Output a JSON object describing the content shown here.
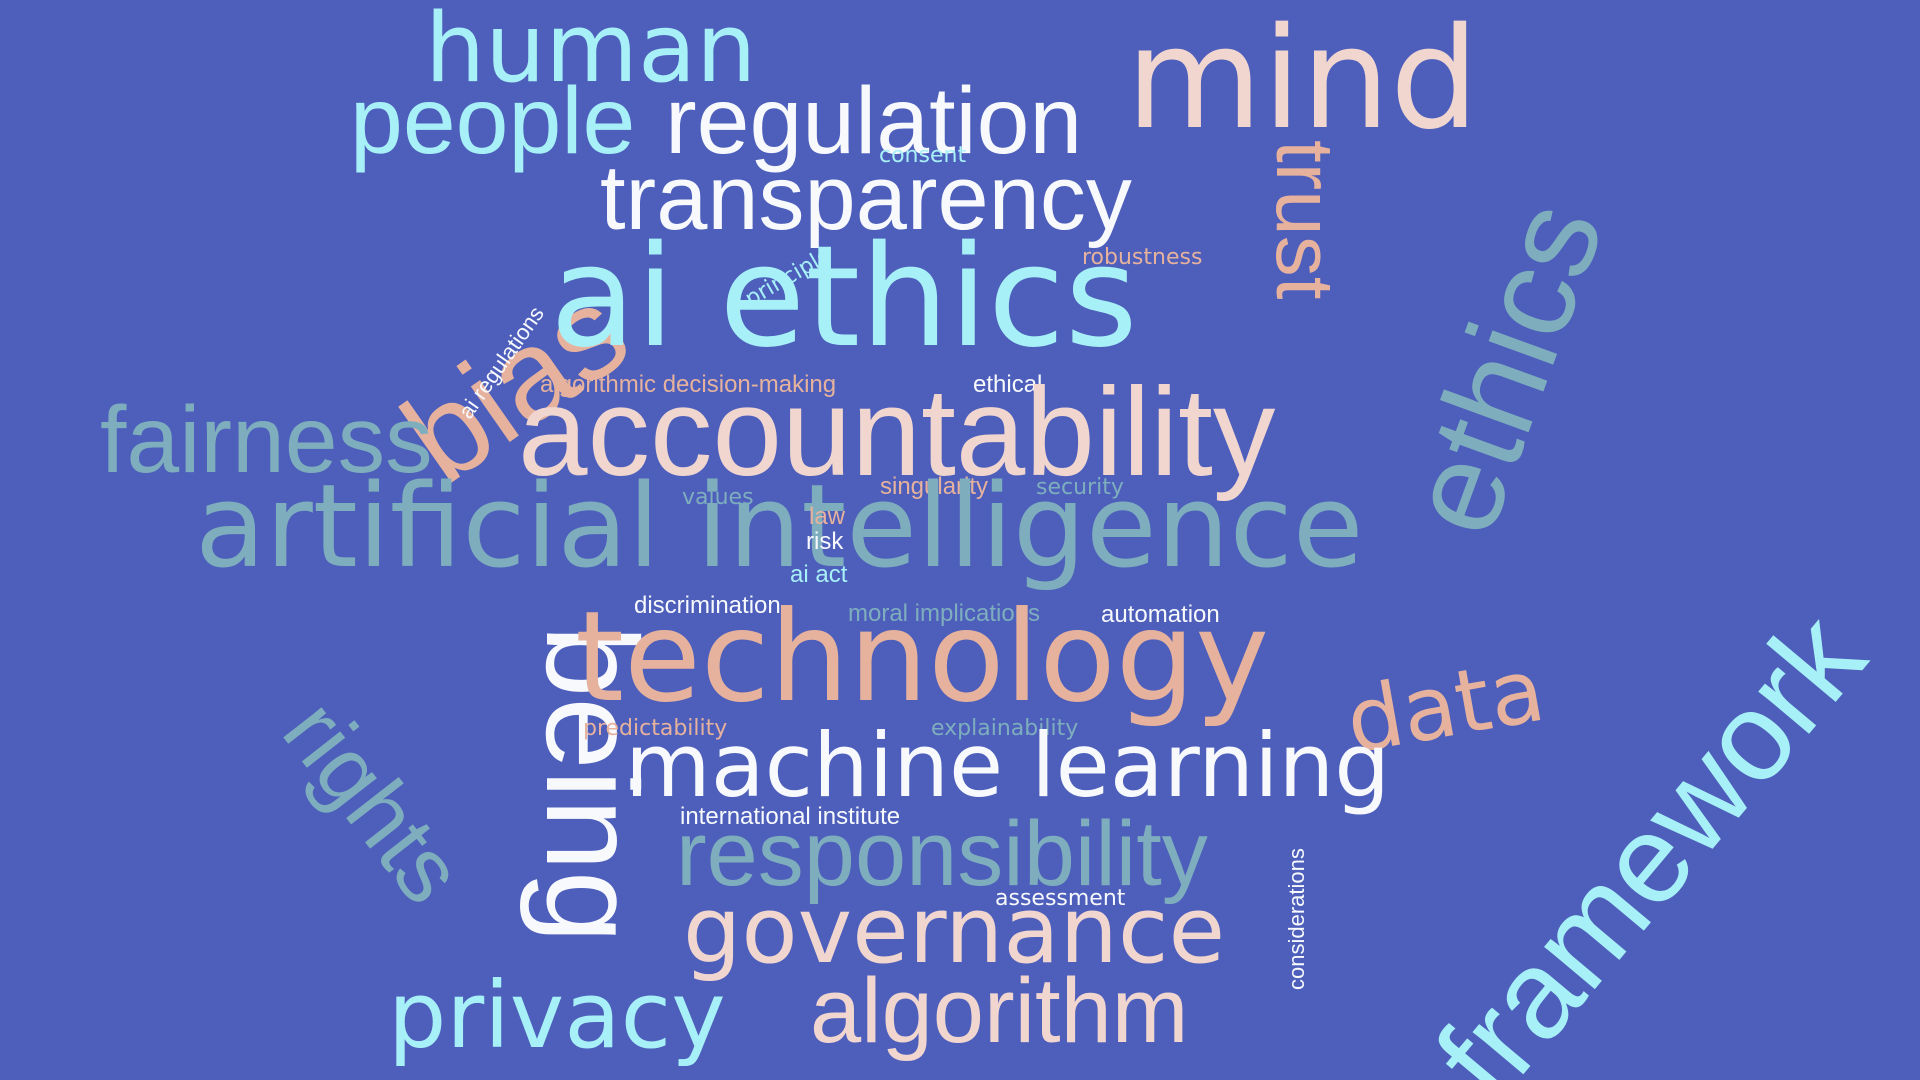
{
  "background": "#4d5fbb",
  "palette": {
    "cyan": "#a8f0f7",
    "teal": "#7eaebe",
    "peach": "#e7b29d",
    "blush": "#f1d6d0",
    "white": "#f7f9fd"
  },
  "words": [
    {
      "text": "human",
      "color": "cyan"
    },
    {
      "text": "people",
      "color": "cyan"
    },
    {
      "text": "regulation",
      "color": "white"
    },
    {
      "text": "mind",
      "color": "blush"
    },
    {
      "text": "consent",
      "color": "cyan"
    },
    {
      "text": "transparency",
      "color": "white"
    },
    {
      "text": "trust",
      "color": "peach"
    },
    {
      "text": "ethics",
      "color": "teal"
    },
    {
      "text": "bias",
      "color": "peach"
    },
    {
      "text": "principle",
      "color": "cyan"
    },
    {
      "text": "robustness",
      "color": "peach"
    },
    {
      "text": "ai ethics",
      "color": "cyan"
    },
    {
      "text": "ai regulations",
      "color": "white"
    },
    {
      "text": "algorithmic decision-making",
      "color": "peach"
    },
    {
      "text": "ethical",
      "color": "white"
    },
    {
      "text": "fairness",
      "color": "teal"
    },
    {
      "text": "accountability",
      "color": "blush"
    },
    {
      "text": "values",
      "color": "teal"
    },
    {
      "text": "singularity",
      "color": "peach"
    },
    {
      "text": "security",
      "color": "teal"
    },
    {
      "text": "framework",
      "color": "cyan"
    },
    {
      "text": "artificial intelligence",
      "color": "teal"
    },
    {
      "text": "law",
      "color": "peach"
    },
    {
      "text": "risk",
      "color": "white"
    },
    {
      "text": "ai act",
      "color": "cyan"
    },
    {
      "text": "discrimination",
      "color": "white"
    },
    {
      "text": "moral implications",
      "color": "teal"
    },
    {
      "text": "automation",
      "color": "white"
    },
    {
      "text": "being",
      "color": "white"
    },
    {
      "text": "technology",
      "color": "peach"
    },
    {
      "text": "data",
      "color": "peach"
    },
    {
      "text": "rights",
      "color": "teal"
    },
    {
      "text": "predictability",
      "color": "peach"
    },
    {
      "text": "explainability",
      "color": "teal"
    },
    {
      "text": "machine learning",
      "color": "white"
    },
    {
      "text": "international institute",
      "color": "white"
    },
    {
      "text": "responsibility",
      "color": "teal"
    },
    {
      "text": "considerations",
      "color": "white"
    },
    {
      "text": "assessment",
      "color": "white"
    },
    {
      "text": "governance",
      "color": "blush"
    },
    {
      "text": "privacy",
      "color": "cyan"
    },
    {
      "text": "algorithm",
      "color": "blush"
    }
  ]
}
